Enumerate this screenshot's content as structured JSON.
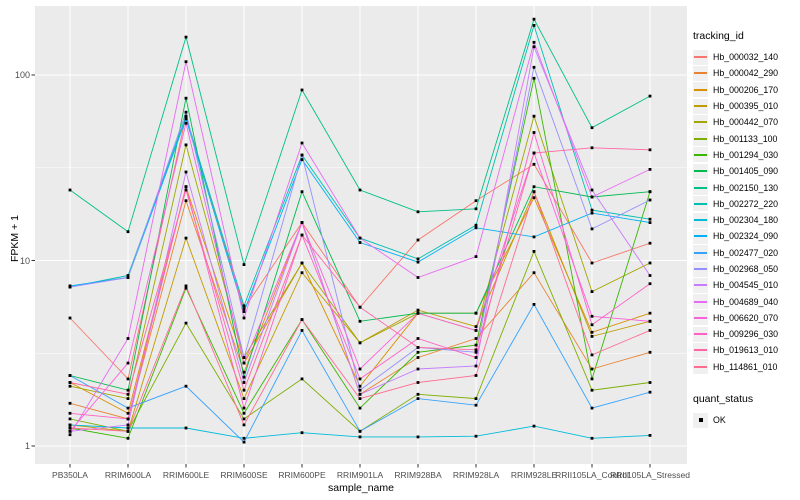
{
  "figure": {
    "background": "#FFFFFF",
    "panel_background": "#EBEBEB",
    "grid_major_color": "#FFFFFF",
    "grid_minor_color": "#F5F5F5",
    "tick_label_color": "#4D4D4D",
    "tick_mark_color": "#333333",
    "point_color": "#000000"
  },
  "chart_data": {
    "type": "line",
    "title": "",
    "xlabel": "sample_name",
    "ylabel": "FPKM + 1",
    "y_scale": "log10",
    "y_ticks": [
      1,
      10,
      100
    ],
    "y_tick_labels": [
      "1",
      "10",
      "100"
    ],
    "y_minor_ticks": [
      3.162,
      31.62
    ],
    "ylim_log": [
      0.82,
      235
    ],
    "grid": true,
    "legend_position": "right",
    "point_shape": "filled-black-square",
    "categories": [
      "PB350LA",
      "RRIM600LA",
      "RRIM600LE",
      "RRIM600SE",
      "RRIM600PE",
      "RRIM901LA",
      "RRIM928BA",
      "RRIM928LA",
      "RRIM928LE",
      "RRII105LA_Control",
      "RRII105LA_Stressed"
    ],
    "series": [
      {
        "name": "Hb_000032_140",
        "color": "#F8766D",
        "values": [
          4.9,
          2.3,
          60,
          5.5,
          16,
          5.6,
          12.9,
          21,
          33,
          9.7,
          12.4
        ]
      },
      {
        "name": "Hb_000042_290",
        "color": "#EA8331",
        "values": [
          1.7,
          1.4,
          21,
          2.5,
          16,
          1.9,
          3.0,
          3.8,
          8.6,
          2.6,
          3.2
        ]
      },
      {
        "name": "Hb_000206_170",
        "color": "#D89000",
        "values": [
          2.2,
          1.5,
          25,
          2.8,
          9.7,
          2.1,
          5.2,
          5.2,
          21.8,
          4.1,
          5.2
        ]
      },
      {
        "name": "Hb_000395_010",
        "color": "#C09B00",
        "values": [
          1.3,
          1.2,
          13.2,
          1.8,
          8.6,
          3.6,
          5.4,
          4.4,
          23.5,
          3.9,
          4.7
        ]
      },
      {
        "name": "Hb_000442_070",
        "color": "#A3A500",
        "values": [
          2.1,
          1.8,
          42,
          3.0,
          9.7,
          3.6,
          5.2,
          4.2,
          60,
          6.8,
          9.7
        ]
      },
      {
        "name": "Hb_001133_100",
        "color": "#7CAE00",
        "values": [
          1.4,
          1.2,
          4.6,
          1.4,
          2.3,
          1.2,
          1.9,
          1.8,
          11.2,
          2.0,
          2.2
        ]
      },
      {
        "name": "Hb_001294_030",
        "color": "#39B600",
        "values": [
          1.25,
          1.1,
          7.1,
          1.5,
          4.8,
          1.6,
          3.2,
          3.5,
          96,
          2.3,
          23.5
        ]
      },
      {
        "name": "Hb_001405_090",
        "color": "#00BB4E",
        "values": [
          2.4,
          2.0,
          75,
          2.35,
          23.5,
          4.7,
          5.2,
          5.2,
          25,
          22,
          23.5
        ]
      },
      {
        "name": "Hb_002150_130",
        "color": "#00C087",
        "values": [
          24,
          14.3,
          160,
          9.5,
          83,
          24,
          18.3,
          19,
          200,
          52,
          77
        ]
      },
      {
        "name": "Hb_002272_220",
        "color": "#00C0B2",
        "values": [
          7.2,
          8.3,
          60,
          5.7,
          37,
          13.2,
          10.2,
          15.5,
          185,
          18.7,
          16.7
        ]
      },
      {
        "name": "Hb_002304_180",
        "color": "#00BCD8",
        "values": [
          1.3,
          1.25,
          1.25,
          1.1,
          1.18,
          1.12,
          1.12,
          1.13,
          1.28,
          1.1,
          1.14
        ]
      },
      {
        "name": "Hb_002324_090",
        "color": "#00B0F6",
        "values": [
          7.3,
          8.1,
          58,
          5.3,
          35,
          12.5,
          9.8,
          15.0,
          13.4,
          18.0,
          16.0
        ]
      },
      {
        "name": "Hb_002477_020",
        "color": "#35A2FF",
        "values": [
          2.4,
          1.6,
          2.1,
          1.05,
          4.2,
          1.2,
          1.8,
          1.66,
          5.8,
          1.6,
          1.95
        ]
      },
      {
        "name": "Hb_002968_050",
        "color": "#9590FF",
        "values": [
          7.2,
          8.1,
          63,
          3.0,
          37,
          2.0,
          3.4,
          3.2,
          110,
          14.8,
          21.2
        ]
      },
      {
        "name": "Hb_004545_010",
        "color": "#C77CFF",
        "values": [
          1.2,
          1.3,
          30,
          2.2,
          16,
          1.9,
          2.6,
          2.7,
          142,
          24,
          8.3
        ]
      },
      {
        "name": "Hb_004689_040",
        "color": "#E76BF3",
        "values": [
          1.15,
          3.8,
          118,
          4.9,
          43,
          13.2,
          8.1,
          10.5,
          150,
          22,
          31
        ]
      },
      {
        "name": "Hb_006620_070",
        "color": "#FA62DB",
        "values": [
          1.2,
          2.8,
          55,
          2.8,
          16,
          2.6,
          5.2,
          4.2,
          38,
          5.0,
          4.7
        ]
      },
      {
        "name": "Hb_009296_030",
        "color": "#FF61C7",
        "values": [
          1.5,
          1.4,
          25,
          1.6,
          13.7,
          2.3,
          3.8,
          3.0,
          49,
          4.5,
          7.5
        ]
      },
      {
        "name": "Hb_019613_010",
        "color": "#FF67A4",
        "values": [
          2.2,
          1.9,
          24,
          2.0,
          13.7,
          5.6,
          3.4,
          3.3,
          38,
          40.5,
          39.5
        ]
      },
      {
        "name": "Hb_114861_010",
        "color": "#FF6C92",
        "values": [
          1.25,
          1.2,
          7.3,
          1.3,
          4.8,
          1.8,
          2.2,
          2.4,
          23.5,
          3.1,
          4.2
        ]
      }
    ]
  },
  "legend": {
    "tracking_title": "tracking_id",
    "quant_title": "quant_status",
    "quant_items": [
      {
        "label": "OK"
      }
    ]
  }
}
